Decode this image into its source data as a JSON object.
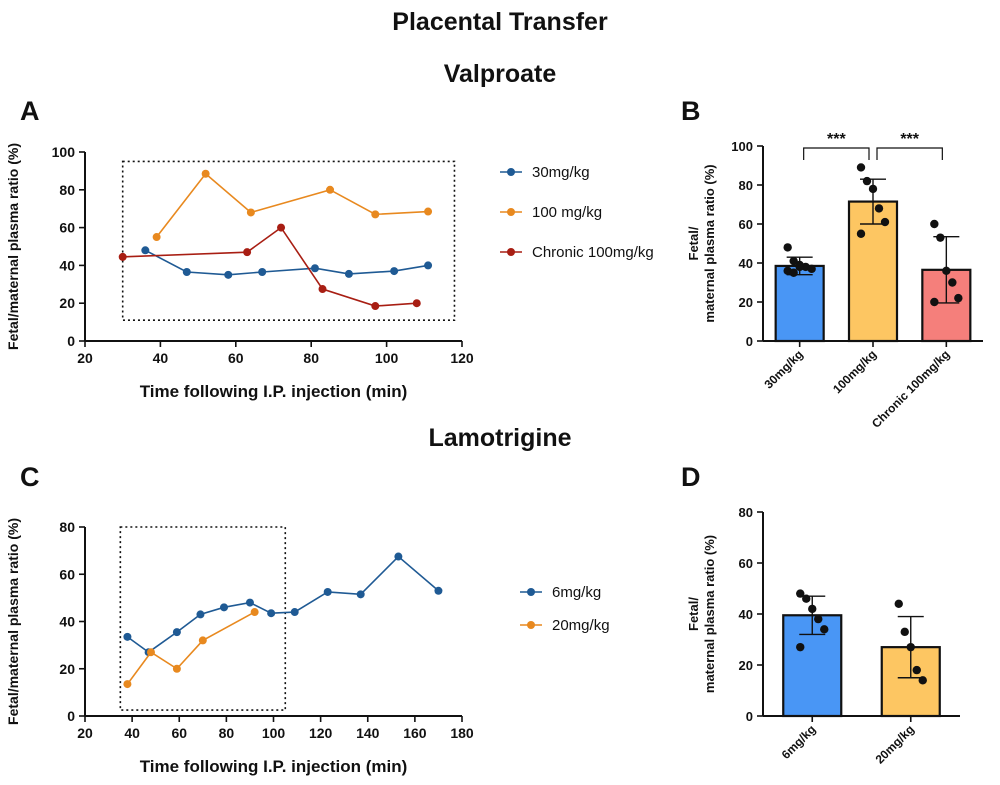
{
  "figure": {
    "title": "Placental Transfer",
    "section_1": "Valproate",
    "section_2": "Lamotrigine",
    "panel_letters": [
      "A",
      "B",
      "C",
      "D"
    ]
  },
  "chart_data": [
    {
      "panel": "A",
      "type": "line",
      "xlabel": "Time following I.P. injection (min)",
      "ylabel": "Fetal/maternal plasma ratio (%)",
      "xlim": [
        20,
        120
      ],
      "ylim": [
        0,
        100
      ],
      "xticks": [
        20,
        40,
        60,
        80,
        100,
        120
      ],
      "yticks": [
        0,
        20,
        40,
        60,
        80,
        100
      ],
      "legend_position": "right",
      "dotted_box": {
        "x": [
          30,
          118
        ],
        "y": [
          11,
          95
        ]
      },
      "series": [
        {
          "name": "30mg/kg",
          "color": "#1f5a94",
          "x": [
            36,
            47,
            58,
            67,
            81,
            90,
            102,
            111
          ],
          "y": [
            48,
            36.5,
            35,
            36.5,
            38.5,
            35.5,
            37,
            40
          ]
        },
        {
          "name": "100 mg/kg",
          "color": "#e8891f",
          "x": [
            39,
            52,
            64,
            85,
            97,
            111
          ],
          "y": [
            55,
            88.5,
            68,
            80,
            67,
            68.5
          ]
        },
        {
          "name": "Chronic 100mg/kg",
          "color": "#a81e13",
          "x": [
            30,
            63,
            72,
            83,
            97,
            108
          ],
          "y": [
            44.5,
            47,
            60,
            27.5,
            18.5,
            20
          ]
        }
      ]
    },
    {
      "panel": "B",
      "type": "bar",
      "ylabel": "Fetal/maternal plasma ratio (%)",
      "ylim": [
        0,
        100
      ],
      "yticks": [
        0,
        20,
        40,
        60,
        80,
        100
      ],
      "categories": [
        "30mg/kg",
        "100mg/kg",
        "Chronic 100mg/kg"
      ],
      "values": [
        38.5,
        71.5,
        36.5
      ],
      "errors": [
        4.5,
        11.5,
        17
      ],
      "colors": [
        "#4996f5",
        "#fdc662",
        "#f57f7b"
      ],
      "points": [
        [
          48,
          41,
          39,
          38,
          37,
          36,
          35,
          38
        ],
        [
          89,
          82,
          78,
          68,
          61,
          55
        ],
        [
          60,
          53,
          36,
          30,
          22,
          20
        ]
      ],
      "significance": [
        {
          "from": 0,
          "to": 1,
          "label": "***"
        },
        {
          "from": 1,
          "to": 2,
          "label": "***"
        }
      ]
    },
    {
      "panel": "C",
      "type": "line",
      "xlabel": "Time following I.P. injection (min)",
      "ylabel": "Fetal/maternal plasma ratio (%)",
      "xlim": [
        20,
        180
      ],
      "ylim": [
        0,
        80
      ],
      "xticks": [
        20,
        40,
        60,
        80,
        100,
        120,
        140,
        160,
        180
      ],
      "yticks": [
        0,
        20,
        40,
        60,
        80
      ],
      "legend_position": "right",
      "dotted_box": {
        "x": [
          35,
          105
        ],
        "y": [
          2.5,
          80
        ]
      },
      "series": [
        {
          "name": "6mg/kg",
          "color": "#1f5a94",
          "x": [
            38,
            47,
            59,
            69,
            79,
            90,
            99,
            109,
            123,
            137,
            153,
            170
          ],
          "y": [
            33.5,
            27,
            35.5,
            43,
            46,
            48,
            43.5,
            44,
            52.5,
            51.5,
            67.5,
            53
          ]
        },
        {
          "name": "20mg/kg",
          "color": "#e8891f",
          "x": [
            38,
            48,
            59,
            70,
            92
          ],
          "y": [
            13.5,
            27,
            20,
            32,
            44
          ]
        }
      ]
    },
    {
      "panel": "D",
      "type": "bar",
      "ylabel": "Fetal/maternal plasma ratio (%)",
      "ylim": [
        0,
        80
      ],
      "yticks": [
        0,
        20,
        40,
        60,
        80
      ],
      "categories": [
        "6mg/kg",
        "20mg/kg"
      ],
      "values": [
        39.5,
        27
      ],
      "errors": [
        7.5,
        12
      ],
      "colors": [
        "#4996f5",
        "#fdc662"
      ],
      "points": [
        [
          48,
          46,
          42,
          38,
          34,
          27
        ],
        [
          44,
          33,
          27,
          18,
          14
        ]
      ],
      "significance": []
    }
  ]
}
